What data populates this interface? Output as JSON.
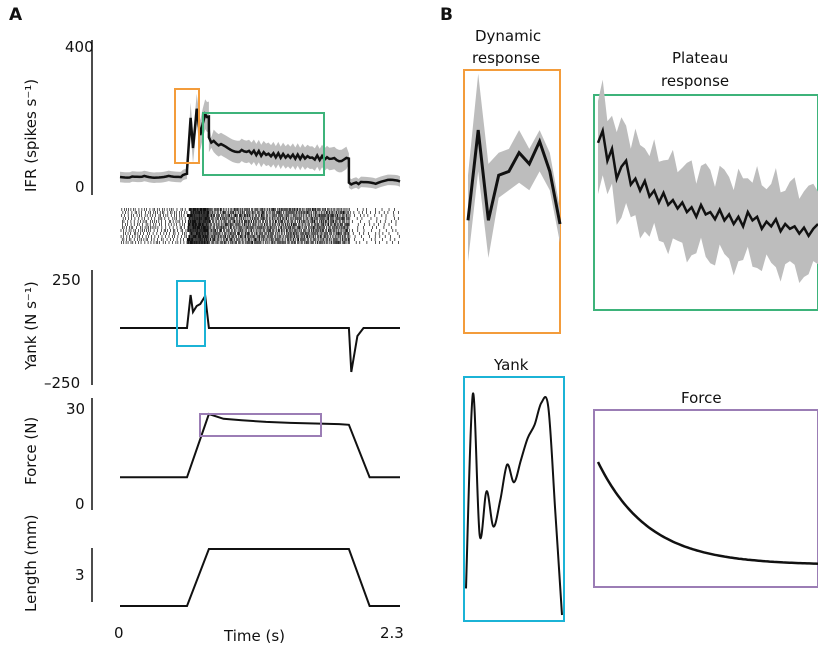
{
  "panels": {
    "a": "A",
    "b": "B"
  },
  "colors": {
    "orange": "#F39C3B",
    "green": "#3DB37A",
    "cyan": "#1BB3D6",
    "purple": "#9B7DB5",
    "shade": "#BDBDBD",
    "trace": "#111111"
  },
  "chart_data": [
    {
      "type": "line",
      "panel": "A",
      "ylabel": "IFR (spikes s⁻¹)",
      "yticks": [
        "0",
        "400"
      ],
      "ylim": [
        0,
        400
      ],
      "xlim": [
        0,
        2.3
      ],
      "x_range_s": [
        0,
        2.3
      ],
      "series": [
        {
          "mean_segments": [
            {
              "t": [
                0.0,
                0.1,
                0.2,
                0.3,
                0.4,
                0.5,
                0.55
              ],
              "v": [
                40,
                42,
                44,
                40,
                45,
                42,
                46
              ]
            },
            {
              "t": [
                0.55,
                0.58,
                0.6,
                0.63,
                0.66,
                0.7,
                0.73
              ],
              "v": [
                55,
                200,
                120,
                220,
                150,
                210,
                195
              ]
            },
            {
              "t": [
                0.73,
                0.85,
                1.0,
                1.2,
                1.4,
                1.6,
                1.8,
                1.88
              ],
              "v": [
                140,
                120,
                110,
                100,
                95,
                92,
                88,
                86
              ]
            },
            {
              "t": [
                1.88,
                2.0,
                2.1,
                2.2,
                2.3
              ],
              "v": [
                22,
                25,
                20,
                30,
                28
              ]
            }
          ]
        }
      ],
      "raster": "spike raster below IFR trace"
    },
    {
      "type": "line",
      "panel": "A",
      "ylabel": "Yank (N s⁻¹)",
      "yticks": [
        "250",
        "–250"
      ],
      "ylim": [
        -250,
        250
      ],
      "series": [
        {
          "t": [
            0.0,
            0.55,
            0.58,
            0.6,
            0.63,
            0.66,
            0.7,
            0.73,
            0.75,
            1.88,
            1.9,
            1.95,
            2.0,
            2.3
          ],
          "v": [
            0,
            0,
            165,
            80,
            110,
            120,
            160,
            0,
            0,
            0,
            -220,
            -40,
            0,
            0
          ]
        }
      ]
    },
    {
      "type": "line",
      "panel": "A",
      "ylabel": "Force (N)",
      "yticks": [
        "0",
        "30"
      ],
      "ylim": [
        0,
        30
      ],
      "series": [
        {
          "t": [
            0.0,
            0.55,
            0.73,
            0.85,
            1.0,
            1.2,
            1.4,
            1.6,
            1.8,
            1.88,
            2.05,
            2.1,
            2.3
          ],
          "v": [
            4,
            4,
            24,
            22.5,
            22,
            21.5,
            21.2,
            21,
            20.8,
            20.6,
            4,
            4,
            4
          ]
        }
      ]
    },
    {
      "type": "line",
      "panel": "A",
      "ylabel": "Length (mm)",
      "yticks": [
        "3"
      ],
      "xlabel": "Time (s)",
      "xticks": [
        "0",
        "2.3"
      ],
      "series": [
        {
          "t": [
            0.0,
            0.55,
            0.73,
            1.88,
            2.05,
            2.3
          ],
          "v": [
            0,
            0,
            6,
            6,
            0,
            0
          ]
        }
      ]
    },
    {
      "type": "line",
      "panel": "B",
      "title": "Dynamic response",
      "series": [
        {
          "x": [
            0,
            1,
            2,
            3,
            4,
            5,
            6,
            7,
            8,
            9
          ],
          "mean": [
            150,
            270,
            150,
            210,
            215,
            240,
            225,
            255,
            215,
            145
          ],
          "lower": [
            95,
            215,
            100,
            180,
            190,
            200,
            190,
            215,
            190,
            120
          ],
          "upper": [
            210,
            345,
            225,
            240,
            245,
            270,
            245,
            270,
            240,
            165
          ]
        }
      ]
    },
    {
      "type": "line",
      "panel": "B",
      "title": "Plateau response",
      "series": [
        {
          "x": [
            0,
            1,
            2,
            3,
            4,
            5,
            6,
            7,
            8,
            9,
            10,
            11,
            12,
            13,
            14,
            15,
            16,
            17,
            18,
            19,
            20,
            21,
            22,
            23,
            24,
            25,
            26,
            27,
            28,
            29,
            30,
            31,
            32,
            33,
            34,
            35,
            36,
            37,
            38,
            39,
            40,
            41,
            42,
            43,
            44,
            45,
            46,
            47
          ],
          "mean": [
            180,
            190,
            165,
            175,
            150,
            160,
            165,
            145,
            150,
            140,
            148,
            135,
            140,
            130,
            138,
            128,
            132,
            125,
            130,
            122,
            126,
            118,
            128,
            120,
            122,
            116,
            124,
            115,
            120,
            112,
            118,
            110,
            122,
            115,
            118,
            108,
            114,
            110,
            116,
            106,
            112,
            108,
            110,
            104,
            109,
            102,
            108,
            112
          ],
          "spread": 35
        }
      ]
    },
    {
      "type": "line",
      "panel": "B",
      "title": "Yank",
      "series": [
        {
          "x": [
            0,
            1,
            2,
            3,
            4,
            5,
            6,
            7,
            8,
            9,
            10,
            11,
            12,
            13,
            14
          ],
          "v": [
            30,
            250,
            90,
            140,
            100,
            130,
            170,
            150,
            175,
            200,
            215,
            240,
            235,
            120,
            0
          ]
        }
      ]
    },
    {
      "type": "line",
      "panel": "B",
      "title": "Force",
      "series": [
        {
          "shape": "exponential decay",
          "v_start": 24,
          "v_end": 20.6
        }
      ]
    }
  ]
}
